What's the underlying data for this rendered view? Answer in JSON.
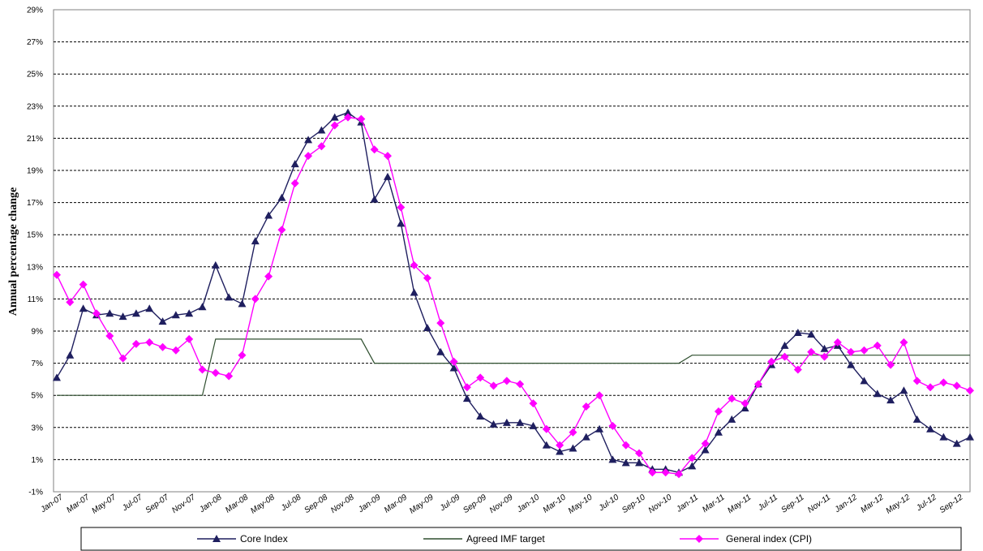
{
  "chart_data": {
    "type": "line",
    "title": "",
    "xlabel": "",
    "ylabel": "Annual percentage change",
    "ylim": [
      -1,
      29
    ],
    "yticks": [
      "-1%",
      "1%",
      "3%",
      "5%",
      "7%",
      "9%",
      "11%",
      "13%",
      "15%",
      "17%",
      "19%",
      "21%",
      "23%",
      "25%",
      "27%",
      "29%"
    ],
    "grid": "horizontal dashed",
    "legend_position": "bottom",
    "x_tick_labels": [
      "Jan-07",
      "Mar-07",
      "May-07",
      "Jul-07",
      "Sep-07",
      "Nov-07",
      "Jan-08",
      "Mar-08",
      "May-08",
      "Jul-08",
      "Sep-08",
      "Nov-08",
      "Jan-09",
      "Mar-09",
      "May-09",
      "Jul-09",
      "Sep-09",
      "Nov-09",
      "Jan-10",
      "Mar-10",
      "May-10",
      "Jul-10",
      "Sep-10",
      "Nov-10",
      "Jan-11",
      "Mar-11",
      "May-11",
      "Jul-11",
      "Sep-11",
      "Nov-11",
      "Jan-12",
      "Mar-12",
      "May-12",
      "Jul-12",
      "Sep-12"
    ],
    "series": [
      {
        "name": "Core Index",
        "color": "#1f1f5f",
        "marker": "triangle",
        "values": [
          6.1,
          7.5,
          10.4,
          10.0,
          10.1,
          9.9,
          10.1,
          10.4,
          9.6,
          10.0,
          10.1,
          10.5,
          13.1,
          11.1,
          10.7,
          14.6,
          16.2,
          17.3,
          19.4,
          20.9,
          21.5,
          22.3,
          22.6,
          22.0,
          17.2,
          18.6,
          15.7,
          11.4,
          9.2,
          7.7,
          6.7,
          4.8,
          3.7,
          3.2,
          3.3,
          3.3,
          3.1,
          1.9,
          1.5,
          1.7,
          2.4,
          2.9,
          1.0,
          0.8,
          0.8,
          0.4,
          0.4,
          0.2,
          0.6,
          1.6,
          2.7,
          3.5,
          4.2,
          5.7,
          6.9,
          8.1,
          8.9,
          8.8,
          7.9,
          8.1,
          6.9,
          5.9,
          5.1,
          4.7,
          5.3,
          3.5,
          2.9,
          2.4,
          2.0,
          2.4
        ]
      },
      {
        "name": "Agreed IMF target",
        "color": "#2f4f2f",
        "marker": "none",
        "values": [
          5,
          5,
          5,
          5,
          5,
          5,
          5,
          5,
          5,
          5,
          5,
          5,
          8.5,
          8.5,
          8.5,
          8.5,
          8.5,
          8.5,
          8.5,
          8.5,
          8.5,
          8.5,
          8.5,
          8.5,
          7,
          7,
          7,
          7,
          7,
          7,
          7,
          7,
          7,
          7,
          7,
          7,
          7,
          7,
          7,
          7,
          7,
          7,
          7,
          7,
          7,
          7,
          7,
          7,
          7.5,
          7.5,
          7.5,
          7.5,
          7.5,
          7.5,
          7.5,
          7.5,
          7.5,
          7.5,
          7.5,
          7.5,
          7.5,
          7.5,
          7.5,
          7.5,
          7.5,
          7.5,
          7.5,
          7.5,
          7.5,
          7.5
        ]
      },
      {
        "name": "General index (CPI)",
        "color": "#ff00ff",
        "marker": "diamond",
        "values": [
          12.5,
          10.8,
          11.9,
          10.1,
          8.7,
          7.3,
          8.2,
          8.3,
          8.0,
          7.8,
          8.5,
          6.6,
          6.4,
          6.2,
          7.5,
          11.0,
          12.4,
          15.3,
          18.2,
          19.9,
          20.5,
          21.8,
          22.3,
          22.2,
          20.3,
          19.9,
          16.7,
          13.1,
          12.3,
          9.5,
          7.1,
          5.5,
          6.1,
          5.6,
          5.9,
          5.7,
          4.5,
          2.9,
          1.9,
          2.7,
          4.3,
          5.0,
          3.1,
          1.9,
          1.4,
          0.2,
          0.2,
          0.1,
          1.1,
          2.0,
          4.0,
          4.8,
          4.5,
          5.7,
          7.1,
          7.4,
          6.6,
          7.7,
          7.4,
          8.3,
          7.7,
          7.8,
          8.1,
          6.9,
          8.3,
          5.9,
          5.5,
          5.8,
          5.6,
          5.3
        ]
      }
    ]
  }
}
